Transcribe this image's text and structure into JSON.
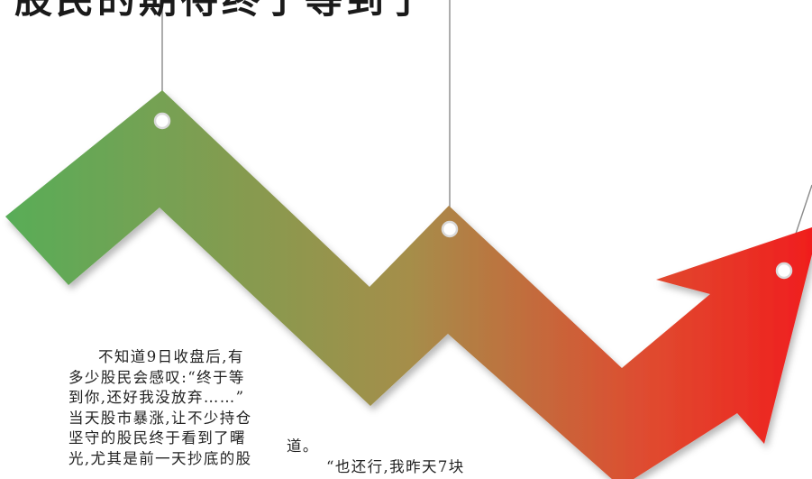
{
  "headline": "股民的期待终于等到了",
  "article": {
    "col1_lines": [
      "不知道9日收盘后,有",
      "多少股民会感叹:“终于等",
      "到你,还好我没放弃……”",
      "当天股市暴涨,让不少持仓",
      "坚守的股民终于看到了曙",
      "光,尤其是前一天抄底的股"
    ],
    "col2_line1": "道。",
    "col2_line2": "“也还行,我昨天7块"
  },
  "colors": {
    "arrow_start": "#5aae57",
    "arrow_mid": "#a58e4a",
    "arrow_end": "#ee2a24",
    "string": "#8a8a8a",
    "hole_ring": "#d9d9d9"
  }
}
